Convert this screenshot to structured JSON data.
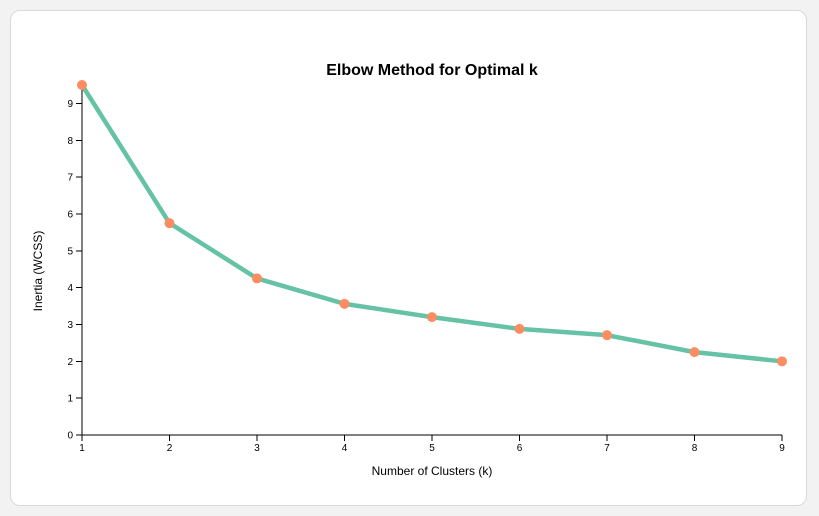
{
  "chart_data": {
    "type": "line",
    "title": "Elbow Method for Optimal k",
    "xlabel": "Number of Clusters (k)",
    "ylabel": "Inertia (WCSS)",
    "x": [
      1,
      2,
      3,
      4,
      5,
      6,
      7,
      8,
      9
    ],
    "series": [
      {
        "values": [
          9.5,
          5.75,
          4.25,
          3.56,
          3.2,
          2.88,
          2.71,
          2.25,
          2.0
        ]
      }
    ],
    "xlim": [
      1,
      9
    ],
    "ylim": [
      0,
      9.5
    ],
    "xticks": [
      "1",
      "2",
      "3",
      "4",
      "5",
      "6",
      "7",
      "8",
      "9"
    ],
    "yticks": [
      "0",
      "1",
      "2",
      "3",
      "4",
      "5",
      "6",
      "7",
      "8",
      "9"
    ],
    "grid": false,
    "colors": {
      "line": "#66c2a5",
      "points": "#fc8d62"
    }
  }
}
